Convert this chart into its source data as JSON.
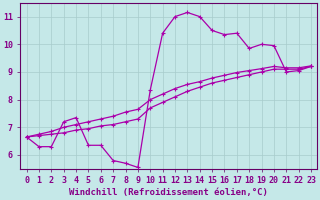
{
  "xlabel": "Windchill (Refroidissement éolien,°C)",
  "xlim": [
    -0.5,
    23.5
  ],
  "ylim": [
    5.5,
    11.5
  ],
  "xticks": [
    0,
    1,
    2,
    3,
    4,
    5,
    6,
    7,
    8,
    9,
    10,
    11,
    12,
    13,
    14,
    15,
    16,
    17,
    18,
    19,
    20,
    21,
    22,
    23
  ],
  "yticks": [
    6,
    7,
    8,
    9,
    10,
    11
  ],
  "background_color": "#c5e8e8",
  "grid_color": "#a8cccc",
  "line_color": "#aa00aa",
  "line1_x": [
    0,
    1,
    2,
    3,
    4,
    5,
    6,
    7,
    8,
    9,
    10,
    11,
    12,
    13,
    14,
    15,
    16,
    17,
    18,
    19,
    20,
    21,
    22,
    23
  ],
  "line1_y": [
    6.65,
    6.3,
    6.3,
    7.2,
    7.35,
    6.35,
    6.35,
    5.8,
    5.7,
    5.55,
    8.35,
    10.4,
    11.0,
    11.15,
    11.0,
    10.5,
    10.35,
    10.4,
    9.85,
    10.0,
    9.95,
    9.0,
    9.05,
    9.2
  ],
  "line2_x": [
    0,
    1,
    2,
    3,
    4,
    5,
    6,
    7,
    8,
    9,
    10,
    11,
    12,
    13,
    14,
    15,
    16,
    17,
    18,
    19,
    20,
    21,
    22,
    23
  ],
  "line2_y": [
    6.65,
    6.7,
    6.75,
    6.8,
    6.9,
    6.95,
    7.05,
    7.1,
    7.2,
    7.3,
    7.7,
    7.9,
    8.1,
    8.3,
    8.45,
    8.6,
    8.7,
    8.8,
    8.9,
    9.0,
    9.1,
    9.1,
    9.1,
    9.2
  ],
  "line3_x": [
    0,
    1,
    2,
    3,
    4,
    5,
    6,
    7,
    8,
    9,
    10,
    11,
    12,
    13,
    14,
    15,
    16,
    17,
    18,
    19,
    20,
    21,
    22,
    23
  ],
  "line3_y": [
    6.65,
    6.75,
    6.85,
    7.0,
    7.1,
    7.2,
    7.3,
    7.4,
    7.55,
    7.65,
    8.0,
    8.2,
    8.4,
    8.55,
    8.65,
    8.78,
    8.88,
    8.98,
    9.05,
    9.12,
    9.2,
    9.15,
    9.15,
    9.22
  ],
  "font_size": 6,
  "tick_label_color": "#880088",
  "axis_color": "#660066"
}
